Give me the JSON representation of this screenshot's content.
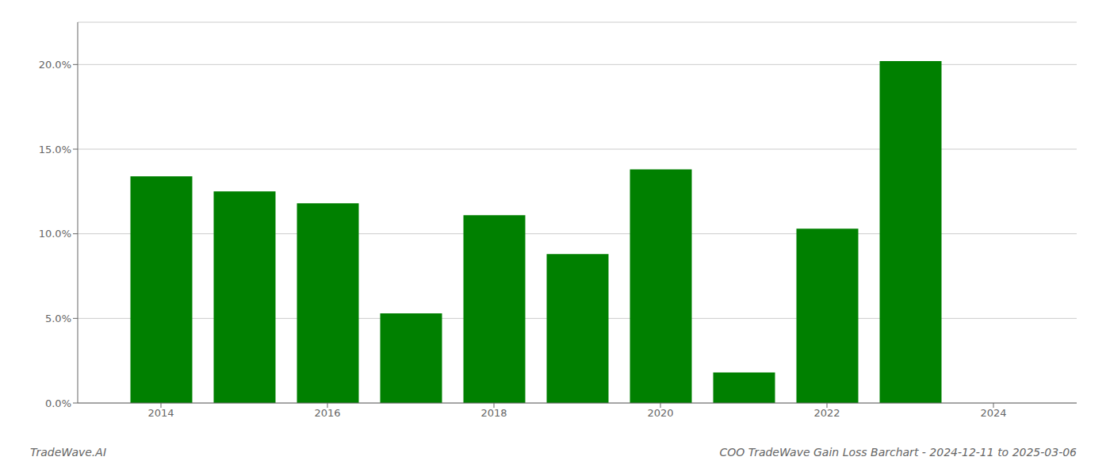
{
  "chart_data": {
    "type": "bar",
    "title": "COO TradeWave Gain Loss Barchart - 2024-12-11 to 2025-03-06",
    "annotations": [
      "TradeWave.AI"
    ],
    "x": [
      2014,
      2015,
      2016,
      2017,
      2018,
      2019,
      2020,
      2021,
      2022,
      2023
    ],
    "values": [
      0.134,
      0.125,
      0.118,
      0.053,
      0.111,
      0.088,
      0.138,
      0.018,
      0.103,
      0.202
    ],
    "color": "#008000",
    "xlim": [
      2013,
      2025
    ],
    "xticks": [
      2014,
      2016,
      2018,
      2020,
      2022,
      2024
    ],
    "ylim": [
      0,
      0.225
    ],
    "yticks": [
      {
        "value": 0,
        "label": "0.0%"
      },
      {
        "value": 0.05,
        "label": "5.0%"
      },
      {
        "value": 0.1,
        "label": "10.0%"
      },
      {
        "value": 0.15,
        "label": "15.0%"
      },
      {
        "value": 0.2,
        "label": "20.0%"
      }
    ],
    "grid": true
  }
}
